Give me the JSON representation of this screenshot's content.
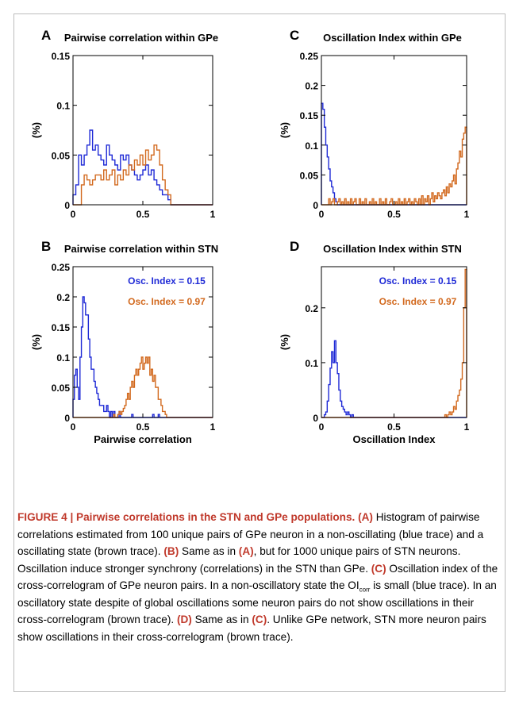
{
  "colors": {
    "blue": "#1f2ad6",
    "brown": "#d2691e"
  },
  "chart_data": [
    {
      "id": "A",
      "type": "histogram-step",
      "letter": "A",
      "title": "Pairwise correlation within GPe",
      "xlabel": "",
      "ylabel": "(%)",
      "xlim": [
        0,
        1
      ],
      "ylim": [
        0,
        0.15
      ],
      "xticks": [
        "0",
        "0.5",
        "1"
      ],
      "xtick_values": [
        0,
        0.5,
        1
      ],
      "yticks": [
        "0",
        "0.05",
        "0.1",
        "0.15"
      ],
      "ytick_values": [
        0,
        0.05,
        0.1,
        0.15
      ],
      "bin_width": 0.02,
      "x_start": 0,
      "legend": [],
      "series": [
        {
          "color": "blue",
          "values": [
            0.01,
            0.02,
            0.05,
            0.04,
            0.05,
            0.06,
            0.075,
            0.055,
            0.06,
            0.05,
            0.045,
            0.04,
            0.06,
            0.05,
            0.045,
            0.04,
            0.035,
            0.05,
            0.045,
            0.05,
            0.04,
            0.035,
            0.03,
            0.025,
            0.03,
            0.035,
            0.04,
            0.03,
            0.035,
            0.025,
            0.02,
            0.015,
            0.01,
            0.01,
            0.005,
            0,
            0,
            0,
            0,
            0,
            0,
            0,
            0,
            0,
            0,
            0,
            0,
            0,
            0,
            0
          ]
        },
        {
          "color": "brown",
          "values": [
            0,
            0,
            0,
            0.02,
            0.03,
            0.025,
            0.02,
            0.025,
            0.03,
            0.03,
            0.025,
            0.035,
            0.025,
            0.03,
            0.035,
            0.02,
            0.03,
            0.025,
            0.035,
            0.03,
            0.04,
            0.035,
            0.045,
            0.04,
            0.05,
            0.04,
            0.055,
            0.045,
            0.05,
            0.06,
            0.055,
            0.04,
            0.025,
            0.015,
            0.01,
            0,
            0,
            0,
            0,
            0,
            0,
            0,
            0,
            0,
            0,
            0,
            0,
            0,
            0,
            0
          ]
        }
      ]
    },
    {
      "id": "C",
      "type": "histogram-step",
      "letter": "C",
      "title": "Oscillation Index  within GPe",
      "xlabel": "",
      "ylabel": "(%)",
      "xlim": [
        0,
        1
      ],
      "ylim": [
        0,
        0.25
      ],
      "xticks": [
        "0",
        "0.5",
        "1"
      ],
      "xtick_values": [
        0,
        0.5,
        1
      ],
      "yticks": [
        "0",
        "0.05",
        "0.1",
        "0.15",
        "0.2",
        "0.25"
      ],
      "ytick_values": [
        0,
        0.05,
        0.1,
        0.15,
        0.2,
        0.25
      ],
      "bin_width": 0.01,
      "x_start": 0,
      "legend": [],
      "series": [
        {
          "color": "blue",
          "values": [
            0.17,
            0.16,
            0.13,
            0.1,
            0.08,
            0.06,
            0.04,
            0.03,
            0.02,
            0.01,
            0.005,
            0,
            0,
            0,
            0,
            0,
            0,
            0,
            0,
            0,
            0,
            0,
            0,
            0,
            0,
            0,
            0,
            0,
            0,
            0,
            0,
            0,
            0,
            0,
            0,
            0,
            0,
            0,
            0,
            0,
            0,
            0,
            0,
            0,
            0,
            0,
            0,
            0,
            0,
            0,
            0,
            0,
            0,
            0,
            0,
            0,
            0,
            0,
            0,
            0,
            0,
            0,
            0,
            0,
            0,
            0,
            0,
            0,
            0,
            0,
            0,
            0,
            0,
            0,
            0,
            0,
            0,
            0,
            0,
            0,
            0,
            0,
            0,
            0,
            0,
            0,
            0,
            0,
            0,
            0,
            0,
            0,
            0,
            0,
            0,
            0,
            0,
            0,
            0,
            0
          ]
        },
        {
          "color": "brown",
          "values": [
            0,
            0,
            0,
            0,
            0,
            0.01,
            0,
            0.005,
            0.01,
            0,
            0,
            0.005,
            0.01,
            0,
            0.005,
            0,
            0.01,
            0,
            0.005,
            0,
            0.01,
            0,
            0.005,
            0.01,
            0,
            0,
            0.01,
            0,
            0.005,
            0,
            0.01,
            0,
            0,
            0.005,
            0,
            0.01,
            0,
            0.005,
            0,
            0,
            0.01,
            0,
            0.005,
            0,
            0.01,
            0,
            0,
            0.005,
            0.01,
            0,
            0,
            0.005,
            0,
            0.01,
            0,
            0.005,
            0,
            0.01,
            0,
            0.005,
            0.01,
            0,
            0.005,
            0,
            0.01,
            0.005,
            0,
            0.01,
            0,
            0.015,
            0,
            0.01,
            0.005,
            0.015,
            0,
            0.01,
            0.02,
            0.005,
            0.015,
            0.01,
            0.02,
            0.015,
            0.01,
            0.02,
            0.025,
            0.015,
            0.03,
            0.02,
            0.035,
            0.03,
            0.04,
            0.05,
            0.035,
            0.06,
            0.07,
            0.09,
            0.08,
            0.11,
            0.12,
            0.13
          ]
        }
      ]
    },
    {
      "id": "B",
      "type": "histogram-step",
      "letter": "B",
      "title": "Pairwise correlation within STN",
      "xlabel": "Pairwise correlation",
      "ylabel": "(%)",
      "xlim": [
        0,
        1
      ],
      "ylim": [
        0,
        0.25
      ],
      "xticks": [
        "0",
        "0.5",
        "1"
      ],
      "xtick_values": [
        0,
        0.5,
        1
      ],
      "yticks": [
        "0",
        "0.05",
        "0.1",
        "0.15",
        "0.2",
        "0.25"
      ],
      "ytick_values": [
        0,
        0.05,
        0.1,
        0.15,
        0.2,
        0.25
      ],
      "bin_width": 0.01,
      "x_start": 0,
      "legend": [
        {
          "text": "Osc. Index = 0.15",
          "color": "blue"
        },
        {
          "text": "Osc. Index = 0.97",
          "color": "brown"
        }
      ],
      "series": [
        {
          "color": "blue",
          "values": [
            0.03,
            0.07,
            0.08,
            0.05,
            0.03,
            0.1,
            0.15,
            0.2,
            0.19,
            0.17,
            0.17,
            0.13,
            0.1,
            0.08,
            0.08,
            0.06,
            0.05,
            0.04,
            0.03,
            0.02,
            0.02,
            0.02,
            0.01,
            0.01,
            0.02,
            0.01,
            0,
            0.01,
            0,
            0.01,
            0,
            0,
            0,
            0.01,
            0,
            0,
            0,
            0,
            0,
            0,
            0,
            0,
            0.005,
            0,
            0,
            0,
            0,
            0,
            0,
            0,
            0,
            0,
            0,
            0,
            0,
            0,
            0,
            0.005,
            0,
            0,
            0,
            0.005,
            0,
            0,
            0,
            0,
            0,
            0,
            0,
            0,
            0,
            0,
            0,
            0,
            0,
            0,
            0,
            0,
            0,
            0,
            0,
            0,
            0,
            0,
            0,
            0,
            0,
            0,
            0,
            0,
            0,
            0,
            0,
            0,
            0,
            0,
            0,
            0,
            0,
            0
          ]
        },
        {
          "color": "brown",
          "values": [
            0,
            0,
            0,
            0,
            0,
            0,
            0,
            0,
            0,
            0,
            0,
            0,
            0,
            0,
            0,
            0,
            0,
            0,
            0,
            0,
            0,
            0,
            0,
            0,
            0,
            0,
            0,
            0,
            0,
            0.005,
            0,
            0,
            0.005,
            0.01,
            0.005,
            0.01,
            0.015,
            0.02,
            0.03,
            0.04,
            0.03,
            0.05,
            0.06,
            0.05,
            0.07,
            0.08,
            0.07,
            0.08,
            0.09,
            0.1,
            0.08,
            0.09,
            0.1,
            0.09,
            0.1,
            0.07,
            0.08,
            0.06,
            0.07,
            0.05,
            0.05,
            0.03,
            0.03,
            0.02,
            0.01,
            0.01,
            0.005,
            0,
            0,
            0,
            0,
            0,
            0,
            0,
            0,
            0,
            0,
            0,
            0,
            0,
            0,
            0,
            0,
            0,
            0,
            0,
            0,
            0,
            0,
            0,
            0,
            0,
            0,
            0,
            0,
            0,
            0,
            0,
            0,
            0
          ]
        }
      ]
    },
    {
      "id": "D",
      "type": "histogram-step",
      "letter": "D",
      "title": "Oscillation Index  within STN",
      "xlabel": "Oscillation Index",
      "ylabel": "(%)",
      "xlim": [
        0,
        1
      ],
      "ylim": [
        0,
        0.275
      ],
      "xticks": [
        "0",
        "0.5",
        "1"
      ],
      "xtick_values": [
        0,
        0.5,
        1
      ],
      "yticks": [
        "0",
        "0.1",
        "0.2"
      ],
      "ytick_values": [
        0,
        0.1,
        0.2
      ],
      "bin_width": 0.01,
      "x_start": 0,
      "legend": [
        {
          "text": "Osc. Index = 0.15",
          "color": "blue"
        },
        {
          "text": "Osc. Index = 0.97",
          "color": "brown"
        }
      ],
      "series": [
        {
          "color": "blue",
          "values": [
            0,
            0,
            0.005,
            0.01,
            0.03,
            0.06,
            0.09,
            0.12,
            0.1,
            0.14,
            0.1,
            0.08,
            0.05,
            0.03,
            0.02,
            0.015,
            0.01,
            0.005,
            0.01,
            0.005,
            0,
            0.005,
            0,
            0,
            0,
            0,
            0,
            0,
            0,
            0,
            0,
            0,
            0,
            0,
            0,
            0,
            0,
            0,
            0,
            0,
            0,
            0,
            0,
            0,
            0,
            0,
            0,
            0,
            0,
            0,
            0,
            0,
            0,
            0,
            0,
            0,
            0,
            0,
            0,
            0,
            0,
            0,
            0,
            0,
            0,
            0,
            0,
            0,
            0,
            0,
            0,
            0,
            0,
            0,
            0,
            0,
            0,
            0,
            0,
            0,
            0,
            0,
            0,
            0,
            0,
            0,
            0,
            0,
            0,
            0,
            0,
            0,
            0,
            0,
            0,
            0,
            0,
            0,
            0,
            0
          ]
        },
        {
          "color": "brown",
          "values": [
            0,
            0,
            0,
            0,
            0,
            0,
            0,
            0,
            0,
            0,
            0,
            0,
            0,
            0,
            0,
            0,
            0,
            0,
            0,
            0,
            0,
            0,
            0,
            0,
            0,
            0,
            0,
            0,
            0,
            0,
            0,
            0,
            0,
            0,
            0,
            0,
            0,
            0,
            0,
            0,
            0,
            0,
            0,
            0,
            0,
            0,
            0,
            0,
            0,
            0,
            0,
            0,
            0,
            0,
            0,
            0,
            0,
            0,
            0,
            0,
            0,
            0,
            0,
            0,
            0,
            0,
            0,
            0,
            0,
            0,
            0,
            0,
            0,
            0,
            0,
            0,
            0,
            0,
            0,
            0,
            0,
            0,
            0,
            0,
            0,
            0.005,
            0,
            0.005,
            0.01,
            0.005,
            0.01,
            0.02,
            0.015,
            0.03,
            0.04,
            0.05,
            0.07,
            0.1,
            0.2,
            0.27
          ]
        }
      ]
    }
  ],
  "caption": {
    "title": "FIGURE 4 | Pairwise correlations in the STN and GPe populations.",
    "a_ref": "(A)",
    "a_text": " Histogram of pairwise correlations estimated from 100 unique pairs of GPe neuron in a non-oscillating (blue trace) and a oscillating state (brown trace).",
    "b_ref": "(B)",
    "b_text_1": " Same as in ",
    "b_ref_2": "(A)",
    "b_text_2": ", but for 1000 unique pairs of STN neurons. Oscillation induce stronger synchrony (correlations) in the STN than GPe.",
    "c_ref": "(C)",
    "c_text_1": " Oscillation index of the cross-correlogram of GPe neuron pairs. In a non-oscillatory state the OI",
    "c_sub": "corr",
    "c_text_2": " is small (blue trace). In an oscillatory state despite of global oscillations some neuron pairs do not show oscillations in their cross-correlogram (brown trace).",
    "d_ref": "(D)",
    "d_text_1": " Same as in ",
    "d_ref_2": "(C)",
    "d_text_2": ". Unlike GPe network, STN more neuron pairs show oscillations in their cross-correlogram (brown trace)."
  }
}
